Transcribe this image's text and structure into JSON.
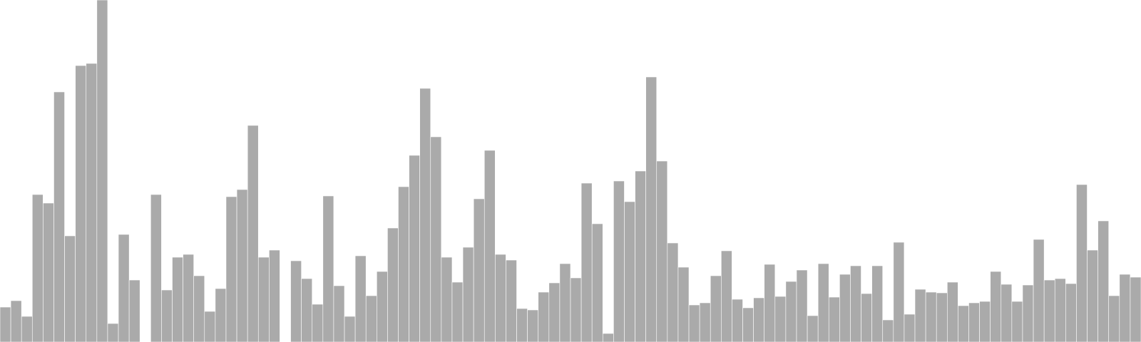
{
  "chart_data": {
    "type": "bar",
    "title": "",
    "xlabel": "",
    "ylabel": "",
    "grid": false,
    "legend": "none",
    "axes_visible": false,
    "ylim": [
      0,
      480
    ],
    "colors": {
      "bar_fill": "#aaaaaa",
      "bar_edge": "#ffffff",
      "background": "#ffffff"
    },
    "values": [
      49,
      58,
      36,
      207,
      195,
      351,
      149,
      388,
      391,
      480,
      26,
      151,
      87,
      0,
      207,
      73,
      119,
      123,
      93,
      43,
      75,
      204,
      214,
      304,
      119,
      129,
      0,
      114,
      89,
      53,
      205,
      79,
      36,
      121,
      65,
      99,
      160,
      218,
      262,
      356,
      288,
      119,
      84,
      133,
      201,
      269,
      123,
      115,
      47,
      45,
      70,
      83,
      110,
      90,
      223,
      166,
      12,
      226,
      197,
      240,
      372,
      254,
      139,
      105,
      52,
      55,
      93,
      128,
      60,
      48,
      62,
      109,
      64,
      85,
      101,
      37,
      110,
      63,
      95,
      107,
      68,
      107,
      31,
      140,
      39,
      74,
      70,
      69,
      84,
      51,
      55,
      57,
      99,
      81,
      57,
      80,
      144,
      87,
      89,
      82,
      221,
      129,
      170,
      65,
      95,
      91
    ]
  }
}
